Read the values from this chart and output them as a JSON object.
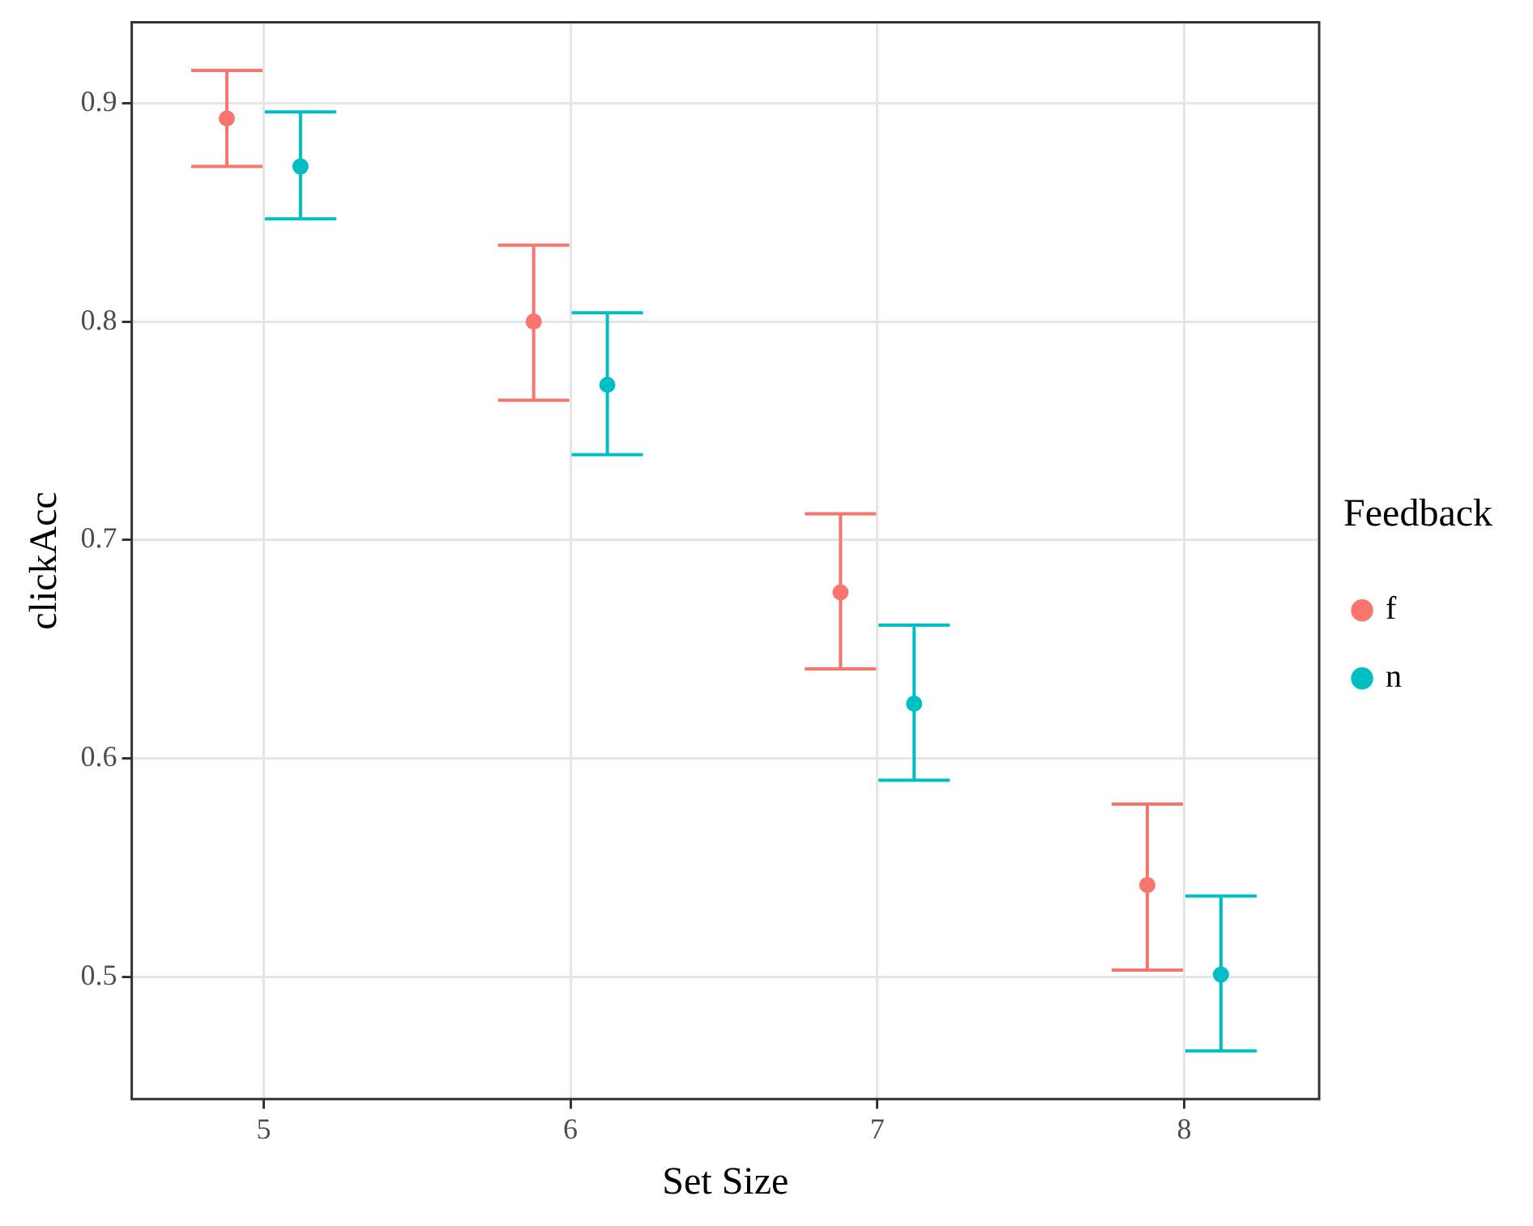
{
  "chart_data": {
    "type": "scatter",
    "xlabel": "Set Size",
    "ylabel": "clickAcc",
    "legend_title": "Feedback",
    "legend": "right",
    "grid": true,
    "marker": "circle",
    "xlim": [
      4.57,
      8.44
    ],
    "xticks": [
      5,
      6,
      7,
      8
    ],
    "ylim": [
      0.444,
      0.937
    ],
    "yticks": [
      0.5,
      0.6,
      0.7,
      0.8,
      0.9
    ],
    "series": [
      {
        "name": "f",
        "color": "#f8766d",
        "x": [
          4.88,
          5.88,
          6.88,
          7.88
        ],
        "values": [
          0.893,
          0.8,
          0.676,
          0.542
        ],
        "errors": [
          [
            0.871,
            0.915
          ],
          [
            0.764,
            0.835
          ],
          [
            0.641,
            0.712
          ],
          [
            0.503,
            0.579
          ]
        ]
      },
      {
        "name": "n",
        "color": "#00bfc4",
        "x": [
          5.12,
          6.12,
          7.12,
          8.12
        ],
        "values": [
          0.871,
          0.771,
          0.625,
          0.501
        ],
        "errors": [
          [
            0.847,
            0.896
          ],
          [
            0.739,
            0.804
          ],
          [
            0.59,
            0.661
          ],
          [
            0.466,
            0.537
          ]
        ]
      }
    ]
  }
}
